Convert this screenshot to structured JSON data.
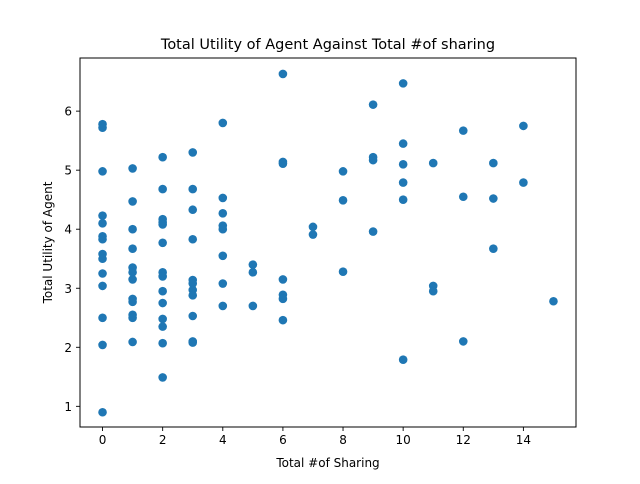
{
  "chart_data": {
    "type": "scatter",
    "title": "Total Utility of Agent Against Total #of sharing",
    "xlabel": "Total #of Sharing",
    "ylabel": "Total Utility of Agent",
    "xlim": [
      -0.75,
      15.75
    ],
    "ylim": [
      0.65,
      6.9
    ],
    "xticks": [
      0,
      2,
      4,
      6,
      8,
      10,
      12,
      14
    ],
    "yticks": [
      1,
      2,
      3,
      4,
      5,
      6
    ],
    "grid": false,
    "marker_color": "#1f77b4",
    "points": [
      {
        "x": 0,
        "y": 5.78
      },
      {
        "x": 0,
        "y": 5.72
      },
      {
        "x": 0,
        "y": 4.98
      },
      {
        "x": 0,
        "y": 4.23
      },
      {
        "x": 0,
        "y": 4.1
      },
      {
        "x": 0,
        "y": 3.88
      },
      {
        "x": 0,
        "y": 3.83
      },
      {
        "x": 0,
        "y": 3.58
      },
      {
        "x": 0,
        "y": 3.5
      },
      {
        "x": 0,
        "y": 3.25
      },
      {
        "x": 0,
        "y": 3.04
      },
      {
        "x": 0,
        "y": 2.5
      },
      {
        "x": 0,
        "y": 2.04
      },
      {
        "x": 0,
        "y": 0.9
      },
      {
        "x": 1,
        "y": 5.03
      },
      {
        "x": 1,
        "y": 4.47
      },
      {
        "x": 1,
        "y": 4.0
      },
      {
        "x": 1,
        "y": 3.67
      },
      {
        "x": 1,
        "y": 3.35
      },
      {
        "x": 1,
        "y": 3.27
      },
      {
        "x": 1,
        "y": 3.15
      },
      {
        "x": 1,
        "y": 2.82
      },
      {
        "x": 1,
        "y": 2.77
      },
      {
        "x": 1,
        "y": 2.55
      },
      {
        "x": 1,
        "y": 2.5
      },
      {
        "x": 1,
        "y": 2.09
      },
      {
        "x": 2,
        "y": 5.22
      },
      {
        "x": 2,
        "y": 4.68
      },
      {
        "x": 2,
        "y": 4.17
      },
      {
        "x": 2,
        "y": 4.12
      },
      {
        "x": 2,
        "y": 4.08
      },
      {
        "x": 2,
        "y": 3.77
      },
      {
        "x": 2,
        "y": 3.27
      },
      {
        "x": 2,
        "y": 3.2
      },
      {
        "x": 2,
        "y": 2.95
      },
      {
        "x": 2,
        "y": 2.75
      },
      {
        "x": 2,
        "y": 2.48
      },
      {
        "x": 2,
        "y": 2.35
      },
      {
        "x": 2,
        "y": 2.07
      },
      {
        "x": 2,
        "y": 1.49
      },
      {
        "x": 3,
        "y": 5.3
      },
      {
        "x": 3,
        "y": 4.68
      },
      {
        "x": 3,
        "y": 4.33
      },
      {
        "x": 3,
        "y": 3.83
      },
      {
        "x": 3,
        "y": 3.14
      },
      {
        "x": 3,
        "y": 3.08
      },
      {
        "x": 3,
        "y": 2.97
      },
      {
        "x": 3,
        "y": 2.88
      },
      {
        "x": 3,
        "y": 2.53
      },
      {
        "x": 3,
        "y": 2.1
      },
      {
        "x": 3,
        "y": 2.08
      },
      {
        "x": 4,
        "y": 5.8
      },
      {
        "x": 4,
        "y": 4.53
      },
      {
        "x": 4,
        "y": 4.27
      },
      {
        "x": 4,
        "y": 4.06
      },
      {
        "x": 4,
        "y": 4.0
      },
      {
        "x": 4,
        "y": 3.55
      },
      {
        "x": 4,
        "y": 3.08
      },
      {
        "x": 4,
        "y": 2.7
      },
      {
        "x": 5,
        "y": 3.4
      },
      {
        "x": 5,
        "y": 3.27
      },
      {
        "x": 5,
        "y": 2.7
      },
      {
        "x": 6,
        "y": 6.63
      },
      {
        "x": 6,
        "y": 5.14
      },
      {
        "x": 6,
        "y": 5.11
      },
      {
        "x": 6,
        "y": 3.15
      },
      {
        "x": 6,
        "y": 2.89
      },
      {
        "x": 6,
        "y": 2.82
      },
      {
        "x": 6,
        "y": 2.46
      },
      {
        "x": 7,
        "y": 4.04
      },
      {
        "x": 7,
        "y": 3.91
      },
      {
        "x": 8,
        "y": 4.98
      },
      {
        "x": 8,
        "y": 4.49
      },
      {
        "x": 8,
        "y": 3.28
      },
      {
        "x": 9,
        "y": 6.11
      },
      {
        "x": 9,
        "y": 5.22
      },
      {
        "x": 9,
        "y": 5.17
      },
      {
        "x": 9,
        "y": 3.96
      },
      {
        "x": 10,
        "y": 6.47
      },
      {
        "x": 10,
        "y": 5.45
      },
      {
        "x": 10,
        "y": 5.1
      },
      {
        "x": 10,
        "y": 4.79
      },
      {
        "x": 10,
        "y": 4.5
      },
      {
        "x": 10,
        "y": 1.79
      },
      {
        "x": 11,
        "y": 5.12
      },
      {
        "x": 11,
        "y": 3.04
      },
      {
        "x": 11,
        "y": 2.95
      },
      {
        "x": 12,
        "y": 5.67
      },
      {
        "x": 12,
        "y": 4.55
      },
      {
        "x": 12,
        "y": 2.1
      },
      {
        "x": 13,
        "y": 5.12
      },
      {
        "x": 13,
        "y": 4.52
      },
      {
        "x": 13,
        "y": 3.67
      },
      {
        "x": 14,
        "y": 5.75
      },
      {
        "x": 14,
        "y": 4.79
      },
      {
        "x": 15,
        "y": 2.78
      }
    ]
  }
}
